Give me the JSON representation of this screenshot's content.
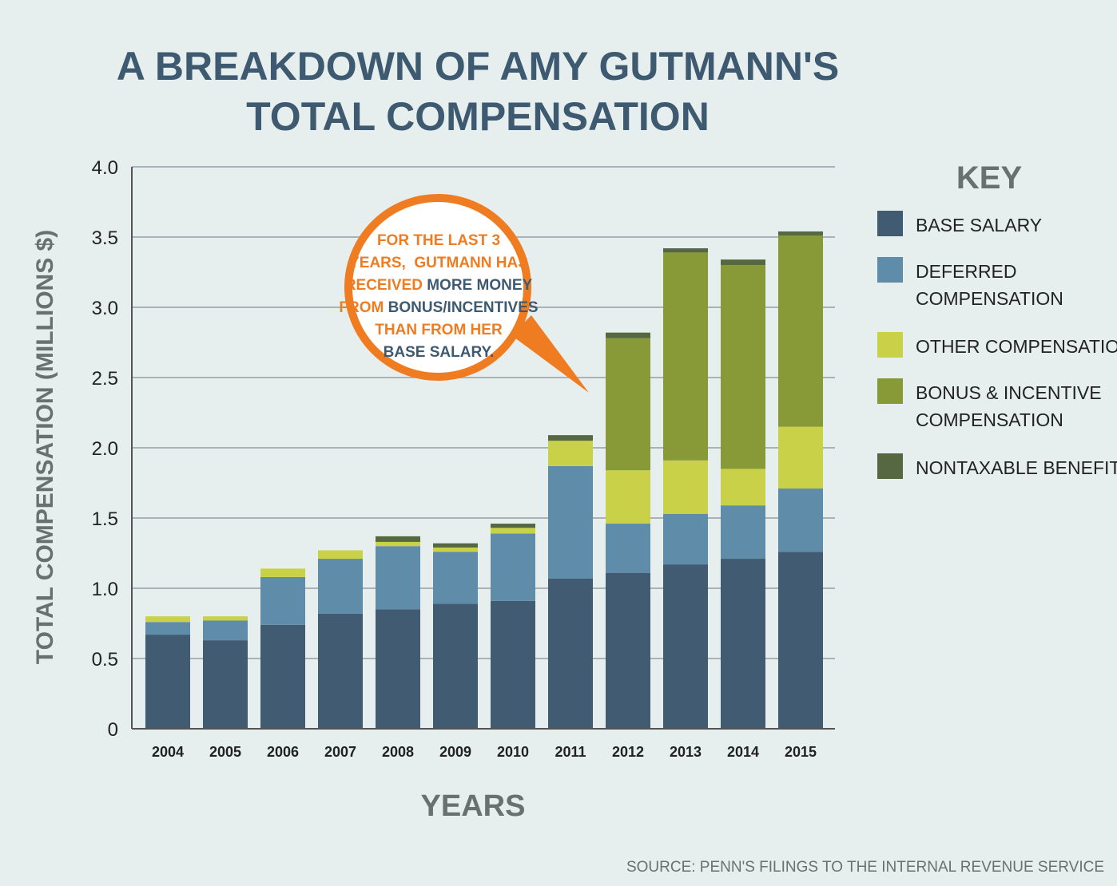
{
  "chart_data": {
    "type": "bar",
    "stacked": true,
    "title": [
      "A BREAKDOWN OF AMY GUTMANN'S",
      "TOTAL COMPENSATION"
    ],
    "xlabel": "YEARS",
    "ylabel": "TOTAL COMPENSATION (MILLIONS $)",
    "ylim": [
      0,
      4.0
    ],
    "yticks": [
      "0",
      "0.5",
      "1.0",
      "1.5",
      "2.0",
      "2.5",
      "3.0",
      "3.5",
      "4.0"
    ],
    "grid": true,
    "legend_title": "KEY",
    "legend_position": "right",
    "categories": [
      "2004",
      "2005",
      "2006",
      "2007",
      "2008",
      "2009",
      "2010",
      "2011",
      "2012",
      "2013",
      "2014",
      "2015"
    ],
    "series": [
      {
        "name": "BASE SALARY",
        "legend_lines": [
          "BASE SALARY"
        ],
        "color": "#415b72",
        "values": [
          0.67,
          0.63,
          0.74,
          0.82,
          0.85,
          0.89,
          0.91,
          1.07,
          1.11,
          1.17,
          1.21,
          1.26
        ]
      },
      {
        "name": "DEFERRED COMPENSATION",
        "legend_lines": [
          "DEFERRED",
          "COMPENSATION"
        ],
        "color": "#5f8ca8",
        "values": [
          0.09,
          0.14,
          0.34,
          0.39,
          0.45,
          0.37,
          0.48,
          0.8,
          0.35,
          0.36,
          0.38,
          0.45
        ]
      },
      {
        "name": "OTHER COMPENSATION",
        "legend_lines": [
          "OTHER COMPENSATION"
        ],
        "color": "#c9d148",
        "values": [
          0.04,
          0.03,
          0.06,
          0.06,
          0.03,
          0.03,
          0.04,
          0.18,
          0.38,
          0.38,
          0.26,
          0.44
        ]
      },
      {
        "name": "BONUS & INCENTIVE COMPENSATION",
        "legend_lines": [
          "BONUS & INCENTIVE",
          "COMPENSATION"
        ],
        "color": "#879a37",
        "values": [
          0,
          0,
          0,
          0,
          0,
          0,
          0,
          0,
          0.94,
          1.48,
          1.45,
          1.36
        ]
      },
      {
        "name": "NONTAXABLE BENEFITS",
        "legend_lines": [
          "NONTAXABLE BENEFITS"
        ],
        "color": "#556842",
        "values": [
          0,
          0,
          0,
          0,
          0.04,
          0.03,
          0.03,
          0.04,
          0.04,
          0.03,
          0.04,
          0.03
        ]
      }
    ],
    "annotation": {
      "lines": [
        [
          {
            "text": "FOR THE LAST 3",
            "color": "orange"
          }
        ],
        [
          {
            "text": "YEARS,  GUTMANN HAS",
            "color": "orange"
          }
        ],
        [
          {
            "text": "RECEIVED ",
            "color": "orange"
          },
          {
            "text": "MORE MONEY",
            "color": "navy"
          }
        ],
        [
          {
            "text": "FROM ",
            "color": "orange"
          },
          {
            "text": "BONUS/INCENTIVES",
            "color": "navy"
          }
        ],
        [
          {
            "text": "THAN FROM HER",
            "color": "orange"
          }
        ],
        [
          {
            "text": "BASE SALARY.",
            "color": "navy"
          }
        ]
      ],
      "accent_color": "#f07c22"
    },
    "source": "SOURCE:  PENN'S FILINGS TO THE INTERNAL REVENUE SERVICE"
  }
}
